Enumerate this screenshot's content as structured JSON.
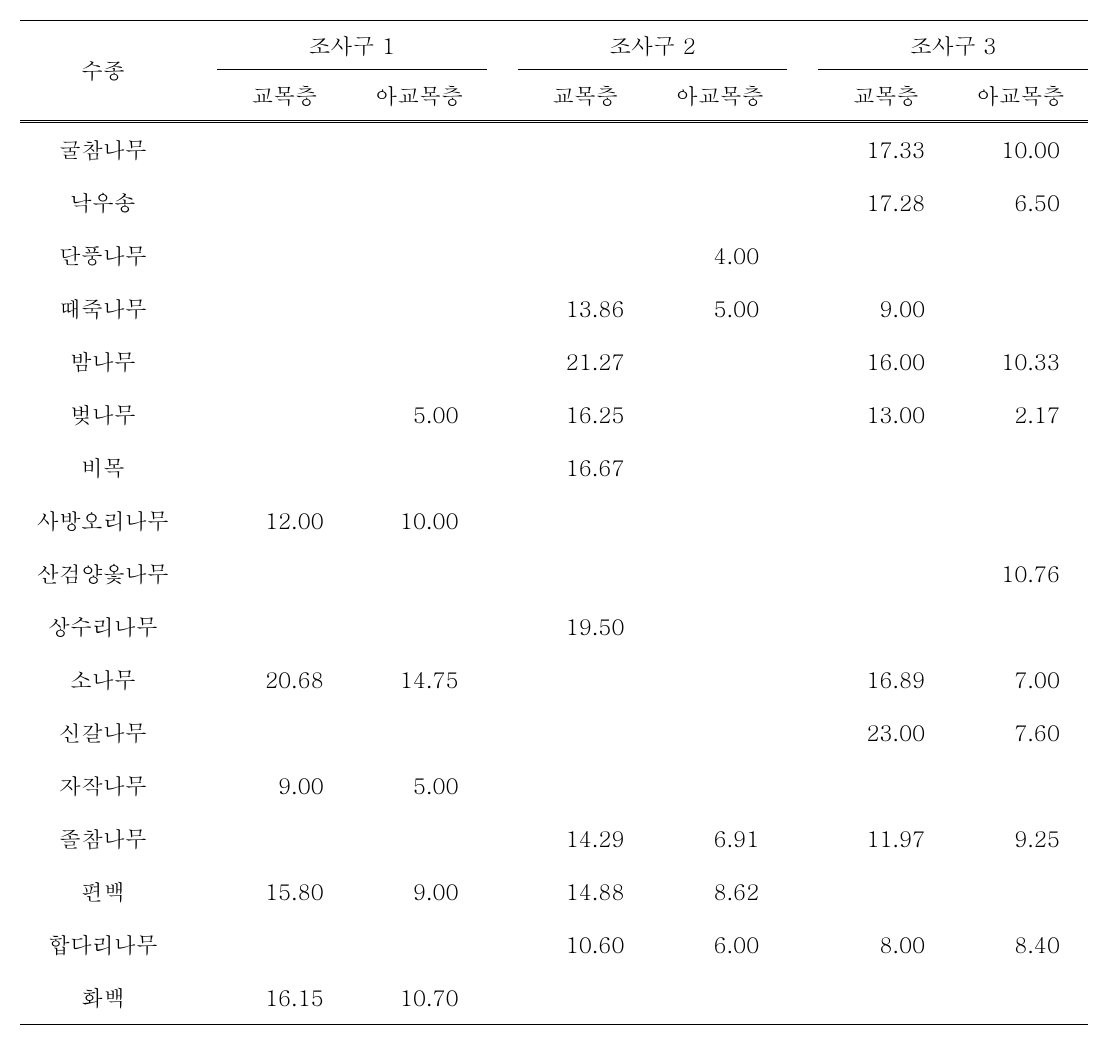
{
  "headers": {
    "species": "수종",
    "group1": "조사구 1",
    "group2": "조사구 2",
    "group3": "조사구 3",
    "sub1": "교목층",
    "sub2": "아교목층"
  },
  "rows": [
    {
      "species": "굴참나무",
      "g1a": "",
      "g1b": "",
      "g2a": "",
      "g2b": "",
      "g3a": "17.33",
      "g3b": "10.00"
    },
    {
      "species": "낙우송",
      "g1a": "",
      "g1b": "",
      "g2a": "",
      "g2b": "",
      "g3a": "17.28",
      "g3b": "6.50"
    },
    {
      "species": "단풍나무",
      "g1a": "",
      "g1b": "",
      "g2a": "",
      "g2b": "4.00",
      "g3a": "",
      "g3b": ""
    },
    {
      "species": "때죽나무",
      "g1a": "",
      "g1b": "",
      "g2a": "13.86",
      "g2b": "5.00",
      "g3a": "9.00",
      "g3b": ""
    },
    {
      "species": "밤나무",
      "g1a": "",
      "g1b": "",
      "g2a": "21.27",
      "g2b": "",
      "g3a": "16.00",
      "g3b": "10.33"
    },
    {
      "species": "벚나무",
      "g1a": "",
      "g1b": "5.00",
      "g2a": "16.25",
      "g2b": "",
      "g3a": "13.00",
      "g3b": "2.17"
    },
    {
      "species": "비목",
      "g1a": "",
      "g1b": "",
      "g2a": "16.67",
      "g2b": "",
      "g3a": "",
      "g3b": ""
    },
    {
      "species": "사방오리나무",
      "g1a": "12.00",
      "g1b": "10.00",
      "g2a": "",
      "g2b": "",
      "g3a": "",
      "g3b": ""
    },
    {
      "species": "산검양옻나무",
      "g1a": "",
      "g1b": "",
      "g2a": "",
      "g2b": "",
      "g3a": "",
      "g3b": "10.76"
    },
    {
      "species": "상수리나무",
      "g1a": "",
      "g1b": "",
      "g2a": "19.50",
      "g2b": "",
      "g3a": "",
      "g3b": ""
    },
    {
      "species": "소나무",
      "g1a": "20.68",
      "g1b": "14.75",
      "g2a": "",
      "g2b": "",
      "g3a": "16.89",
      "g3b": "7.00"
    },
    {
      "species": "신갈나무",
      "g1a": "",
      "g1b": "",
      "g2a": "",
      "g2b": "",
      "g3a": "23.00",
      "g3b": "7.60"
    },
    {
      "species": "자작나무",
      "g1a": "9.00",
      "g1b": "5.00",
      "g2a": "",
      "g2b": "",
      "g3a": "",
      "g3b": ""
    },
    {
      "species": "졸참나무",
      "g1a": "",
      "g1b": "",
      "g2a": "14.29",
      "g2b": "6.91",
      "g3a": "11.97",
      "g3b": "9.25"
    },
    {
      "species": "편백",
      "g1a": "15.80",
      "g1b": "9.00",
      "g2a": "14.88",
      "g2b": "8.62",
      "g3a": "",
      "g3b": ""
    },
    {
      "species": "합다리나무",
      "g1a": "",
      "g1b": "",
      "g2a": "10.60",
      "g2b": "6.00",
      "g3a": "8.00",
      "g3b": "8.40"
    },
    {
      "species": "화백",
      "g1a": "16.15",
      "g1b": "10.70",
      "g2a": "",
      "g2b": "",
      "g3a": "",
      "g3b": ""
    }
  ]
}
